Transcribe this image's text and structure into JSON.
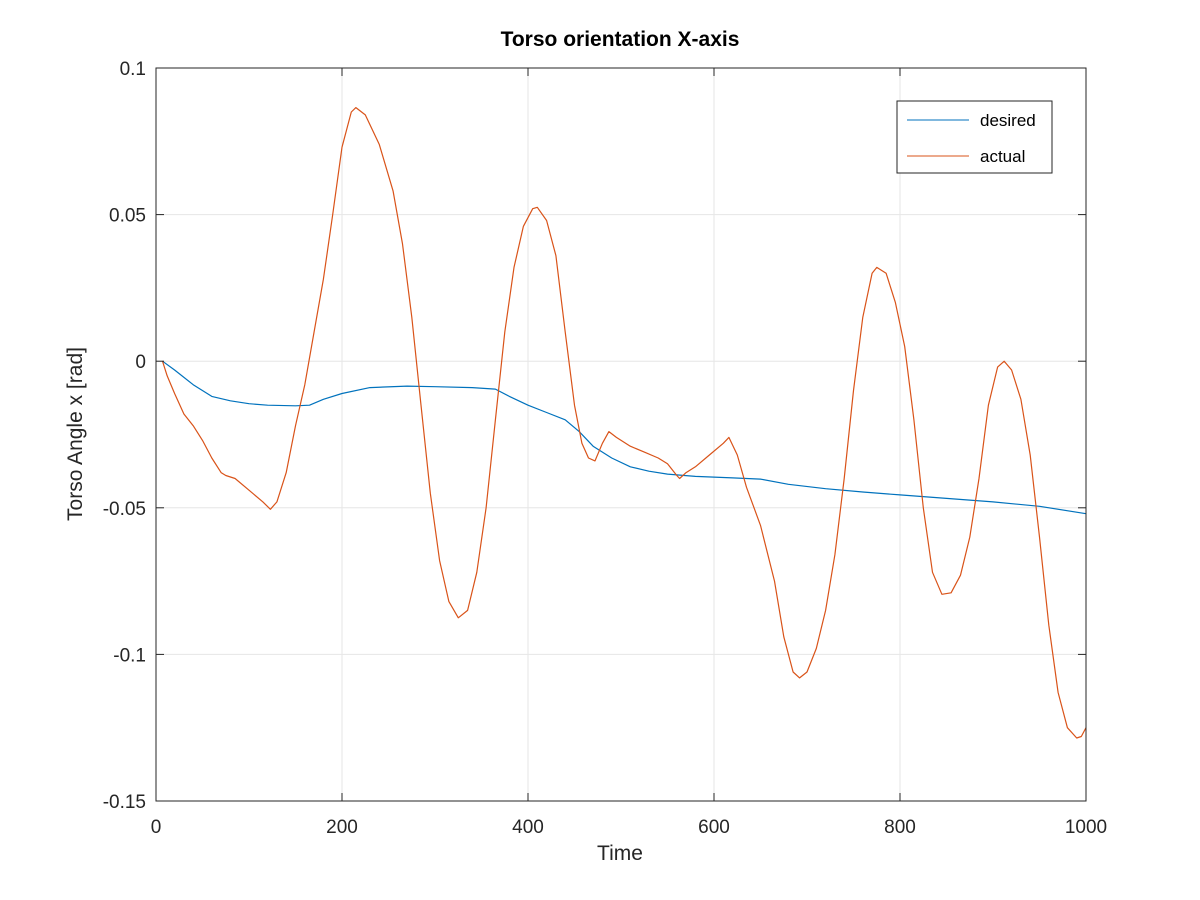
{
  "chart_data": {
    "type": "line",
    "title": "Torso orientation X-axis",
    "xlabel": "Time",
    "ylabel": "Torso Angle x [rad]",
    "xlim": [
      0,
      1000
    ],
    "ylim": [
      -0.15,
      0.1
    ],
    "xticks": [
      0,
      200,
      400,
      600,
      800,
      1000
    ],
    "xtick_labels": [
      "0",
      "200",
      "400",
      "600",
      "800",
      "1000"
    ],
    "yticks": [
      -0.15,
      -0.1,
      -0.05,
      0,
      0.05,
      0.1
    ],
    "ytick_labels": [
      "-0.15",
      "-0.1",
      "-0.05",
      "0",
      "0.05",
      "0.1"
    ],
    "grid": true,
    "legend_position": "top-right",
    "series": [
      {
        "name": "desired",
        "color": "#0072BD",
        "points": [
          [
            7,
            0
          ],
          [
            20,
            -0.003
          ],
          [
            40,
            -0.008
          ],
          [
            60,
            -0.012
          ],
          [
            80,
            -0.0135
          ],
          [
            100,
            -0.0145
          ],
          [
            120,
            -0.015
          ],
          [
            150,
            -0.0152
          ],
          [
            165,
            -0.015
          ],
          [
            180,
            -0.013
          ],
          [
            200,
            -0.011
          ],
          [
            230,
            -0.009
          ],
          [
            270,
            -0.0085
          ],
          [
            300,
            -0.0087
          ],
          [
            340,
            -0.009
          ],
          [
            365,
            -0.0095
          ],
          [
            380,
            -0.012
          ],
          [
            400,
            -0.015
          ],
          [
            420,
            -0.0175
          ],
          [
            440,
            -0.02
          ],
          [
            455,
            -0.024
          ],
          [
            470,
            -0.029
          ],
          [
            490,
            -0.033
          ],
          [
            510,
            -0.036
          ],
          [
            530,
            -0.0375
          ],
          [
            550,
            -0.0385
          ],
          [
            580,
            -0.0393
          ],
          [
            620,
            -0.0398
          ],
          [
            650,
            -0.0402
          ],
          [
            680,
            -0.042
          ],
          [
            720,
            -0.0435
          ],
          [
            760,
            -0.0446
          ],
          [
            800,
            -0.0456
          ],
          [
            850,
            -0.0468
          ],
          [
            900,
            -0.048
          ],
          [
            950,
            -0.0495
          ],
          [
            1000,
            -0.052
          ]
        ]
      },
      {
        "name": "actual",
        "color": "#D95319",
        "points": [
          [
            7,
            0
          ],
          [
            12,
            -0.005
          ],
          [
            20,
            -0.011
          ],
          [
            30,
            -0.018
          ],
          [
            40,
            -0.022
          ],
          [
            50,
            -0.027
          ],
          [
            60,
            -0.033
          ],
          [
            70,
            -0.038
          ],
          [
            75,
            -0.039
          ],
          [
            85,
            -0.04
          ],
          [
            100,
            -0.044
          ],
          [
            115,
            -0.048
          ],
          [
            123,
            -0.0505
          ],
          [
            130,
            -0.048
          ],
          [
            140,
            -0.038
          ],
          [
            150,
            -0.022
          ],
          [
            160,
            -0.008
          ],
          [
            170,
            0.01
          ],
          [
            180,
            0.028
          ],
          [
            190,
            0.05
          ],
          [
            200,
            0.073
          ],
          [
            210,
            0.085
          ],
          [
            215,
            0.0865
          ],
          [
            225,
            0.084
          ],
          [
            240,
            0.074
          ],
          [
            255,
            0.058
          ],
          [
            265,
            0.04
          ],
          [
            275,
            0.015
          ],
          [
            285,
            -0.015
          ],
          [
            295,
            -0.045
          ],
          [
            305,
            -0.068
          ],
          [
            315,
            -0.082
          ],
          [
            325,
            -0.0875
          ],
          [
            335,
            -0.085
          ],
          [
            345,
            -0.072
          ],
          [
            355,
            -0.05
          ],
          [
            365,
            -0.02
          ],
          [
            375,
            0.01
          ],
          [
            385,
            0.032
          ],
          [
            395,
            0.046
          ],
          [
            405,
            0.052
          ],
          [
            410,
            0.0525
          ],
          [
            420,
            0.048
          ],
          [
            430,
            0.036
          ],
          [
            440,
            0.01
          ],
          [
            450,
            -0.015
          ],
          [
            458,
            -0.028
          ],
          [
            465,
            -0.033
          ],
          [
            472,
            -0.034
          ],
          [
            480,
            -0.028
          ],
          [
            487,
            -0.024
          ],
          [
            495,
            -0.026
          ],
          [
            510,
            -0.029
          ],
          [
            525,
            -0.031
          ],
          [
            540,
            -0.033
          ],
          [
            550,
            -0.035
          ],
          [
            560,
            -0.039
          ],
          [
            563,
            -0.04
          ],
          [
            570,
            -0.038
          ],
          [
            580,
            -0.036
          ],
          [
            595,
            -0.032
          ],
          [
            610,
            -0.028
          ],
          [
            616,
            -0.026
          ],
          [
            625,
            -0.032
          ],
          [
            635,
            -0.043
          ],
          [
            650,
            -0.056
          ],
          [
            665,
            -0.075
          ],
          [
            675,
            -0.094
          ],
          [
            685,
            -0.106
          ],
          [
            692,
            -0.108
          ],
          [
            700,
            -0.106
          ],
          [
            710,
            -0.098
          ],
          [
            720,
            -0.085
          ],
          [
            730,
            -0.066
          ],
          [
            740,
            -0.04
          ],
          [
            750,
            -0.01
          ],
          [
            760,
            0.015
          ],
          [
            770,
            0.03
          ],
          [
            775,
            0.032
          ],
          [
            785,
            0.03
          ],
          [
            795,
            0.02
          ],
          [
            805,
            0.005
          ],
          [
            815,
            -0.02
          ],
          [
            825,
            -0.05
          ],
          [
            835,
            -0.072
          ],
          [
            845,
            -0.0795
          ],
          [
            855,
            -0.079
          ],
          [
            865,
            -0.073
          ],
          [
            875,
            -0.06
          ],
          [
            885,
            -0.04
          ],
          [
            895,
            -0.015
          ],
          [
            905,
            -0.002
          ],
          [
            912,
            0
          ],
          [
            920,
            -0.003
          ],
          [
            930,
            -0.013
          ],
          [
            940,
            -0.032
          ],
          [
            950,
            -0.06
          ],
          [
            960,
            -0.09
          ],
          [
            970,
            -0.113
          ],
          [
            980,
            -0.125
          ],
          [
            990,
            -0.1285
          ],
          [
            995,
            -0.128
          ],
          [
            1000,
            -0.125
          ]
        ]
      }
    ]
  }
}
